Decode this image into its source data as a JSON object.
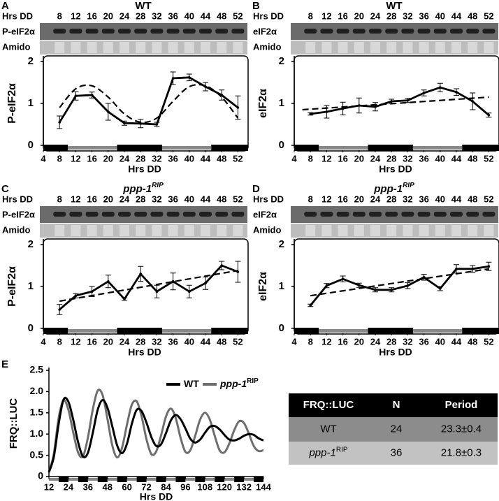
{
  "chart_data": [
    {
      "panel": "A",
      "type": "line",
      "title": "WT",
      "header_label": "Hrs DD",
      "blot_labels": [
        "P-eIF2α",
        "Amido"
      ],
      "x": [
        8,
        12,
        16,
        20,
        24,
        28,
        32,
        36,
        40,
        44,
        48,
        52
      ],
      "series": [
        {
          "color": "#000000",
          "values": [
            0.55,
            1.18,
            1.2,
            0.8,
            0.53,
            0.52,
            0.5,
            1.6,
            1.62,
            1.4,
            1.2,
            0.9
          ],
          "errors": [
            0.15,
            0.1,
            0.07,
            0.2,
            0.05,
            0.1,
            0.05,
            0.15,
            0.08,
            0.1,
            0.12,
            0.28
          ]
        }
      ],
      "fit": {
        "color": "#000000",
        "x": [
          8,
          12,
          16,
          20,
          24,
          28,
          32,
          36,
          40,
          44,
          48,
          52
        ],
        "values": [
          0.9,
          1.35,
          1.42,
          1.15,
          0.75,
          0.55,
          0.65,
          1.05,
          1.4,
          1.42,
          1.15,
          0.65
        ]
      },
      "xlim": [
        4,
        54
      ],
      "xticks": [
        4,
        8,
        12,
        16,
        20,
        24,
        28,
        32,
        36,
        40,
        44,
        48,
        52
      ],
      "ylim": [
        0,
        2
      ],
      "yticks": [
        0,
        1,
        2
      ],
      "x_label": "Hrs DD",
      "y_label": "P-eIF2α"
    },
    {
      "panel": "B",
      "type": "line",
      "title": "WT",
      "header_label": "Hrs DD",
      "blot_labels": [
        "eIF2α",
        "Amido"
      ],
      "x": [
        8,
        12,
        16,
        20,
        24,
        28,
        32,
        36,
        40,
        44,
        48,
        52
      ],
      "series": [
        {
          "color": "#000000",
          "values": [
            0.75,
            0.8,
            0.88,
            0.95,
            0.92,
            1.05,
            1.07,
            1.25,
            1.38,
            1.27,
            1.05,
            0.72
          ],
          "errors": [
            0.03,
            0.15,
            0.15,
            0.18,
            0.1,
            0.05,
            0.05,
            0.07,
            0.1,
            0.08,
            0.2,
            0.05
          ]
        }
      ],
      "fit": {
        "color": "#000000",
        "x": [
          6,
          52
        ],
        "values": [
          0.85,
          1.15
        ]
      },
      "xlim": [
        4,
        54
      ],
      "xticks": [
        4,
        8,
        12,
        16,
        20,
        24,
        28,
        32,
        36,
        40,
        44,
        48,
        52
      ],
      "ylim": [
        0,
        2
      ],
      "yticks": [
        0,
        1,
        2
      ],
      "x_label": "Hrs DD",
      "y_label": "eIF2α"
    },
    {
      "panel": "C",
      "type": "line",
      "title": "ppp-1",
      "title_sup": "RIP",
      "header_label": "Hrs DD",
      "blot_labels": [
        "P-eIF2α",
        "Amido"
      ],
      "x": [
        8,
        12,
        16,
        20,
        24,
        28,
        32,
        36,
        40,
        44,
        48,
        52
      ],
      "series": [
        {
          "color": "#000000",
          "values": [
            0.45,
            0.78,
            0.88,
            1.12,
            0.7,
            1.3,
            0.88,
            1.12,
            0.88,
            1.08,
            1.5,
            1.35
          ],
          "errors": [
            0.12,
            0.05,
            0.12,
            0.15,
            0.03,
            0.18,
            0.15,
            0.2,
            0.15,
            0.15,
            0.1,
            0.25
          ]
        }
      ],
      "fit": {
        "color": "#000000",
        "x": [
          8,
          52
        ],
        "values": [
          0.65,
          1.38
        ]
      },
      "xlim": [
        4,
        54
      ],
      "xticks": [
        4,
        8,
        12,
        16,
        20,
        24,
        28,
        32,
        36,
        40,
        44,
        48,
        52
      ],
      "ylim": [
        0,
        2
      ],
      "yticks": [
        0,
        1,
        2
      ],
      "x_label": "Hrs DD",
      "y_label": "P-eIF2α"
    },
    {
      "panel": "D",
      "type": "line",
      "title": "ppp-1",
      "title_sup": "RIP",
      "header_label": "Hrs DD",
      "blot_labels": [
        "eIF2α",
        "Amido"
      ],
      "x": [
        8,
        12,
        16,
        20,
        24,
        28,
        32,
        36,
        40,
        44,
        48,
        52
      ],
      "series": [
        {
          "color": "#000000",
          "values": [
            0.55,
            1.02,
            1.18,
            1.03,
            0.92,
            0.92,
            1.02,
            1.22,
            0.95,
            1.42,
            1.42,
            1.48
          ],
          "errors": [
            0.03,
            0.05,
            0.07,
            0.05,
            0.05,
            0.05,
            0.07,
            0.07,
            0.05,
            0.1,
            0.08,
            0.1
          ]
        }
      ],
      "fit": {
        "color": "#000000",
        "x": [
          8,
          52
        ],
        "values": [
          0.78,
          1.42
        ]
      },
      "xlim": [
        4,
        54
      ],
      "xticks": [
        4,
        8,
        12,
        16,
        20,
        24,
        28,
        32,
        36,
        40,
        44,
        48,
        52
      ],
      "ylim": [
        0,
        2
      ],
      "yticks": [
        0,
        1,
        2
      ],
      "x_label": "Hrs DD",
      "y_label": "eIF2α"
    },
    {
      "panel": "E",
      "type": "oscillation",
      "x": [
        12,
        15,
        18,
        21,
        24,
        27,
        30,
        33,
        36,
        39,
        42,
        45,
        48,
        51,
        54,
        57,
        60,
        63,
        66,
        69,
        72,
        75,
        78,
        81,
        84,
        87,
        90,
        93,
        96,
        99,
        102,
        105,
        108,
        111,
        114,
        117,
        120,
        123,
        126,
        129,
        132,
        135,
        138,
        141,
        144
      ],
      "series": [
        {
          "name": "WT",
          "color": "#000000",
          "values": [
            0.1,
            0.46,
            1.24,
            1.81,
            1.76,
            1.33,
            0.8,
            0.47,
            0.56,
            1.03,
            1.57,
            1.8,
            1.62,
            1.18,
            0.73,
            0.55,
            0.77,
            1.24,
            1.57,
            1.54,
            1.27,
            0.93,
            0.72,
            0.76,
            1.02,
            1.32,
            1.45,
            1.35,
            1.13,
            0.89,
            0.8,
            0.87,
            1.03,
            1.17,
            1.19,
            1.11,
            0.98,
            0.87,
            0.85,
            0.89,
            0.96,
            1.0,
            0.98,
            0.9,
            0.85
          ]
        },
        {
          "name": "ppp-1",
          "name_sup": "RIP",
          "color": "#6e6e6e",
          "values": [
            0.1,
            0.53,
            1.38,
            1.8,
            1.57,
            1.03,
            0.56,
            0.48,
            0.92,
            1.58,
            2.02,
            1.92,
            1.36,
            0.73,
            0.45,
            0.68,
            1.22,
            1.69,
            1.77,
            1.42,
            0.88,
            0.53,
            0.59,
            0.97,
            1.41,
            1.6,
            1.38,
            0.91,
            0.58,
            0.62,
            0.96,
            1.34,
            1.5,
            1.34,
            0.96,
            0.62,
            0.57,
            0.78,
            1.09,
            1.3,
            1.26,
            1.01,
            0.72,
            0.6,
            0.62
          ]
        }
      ],
      "xlim": [
        12,
        144
      ],
      "xticks": [
        12,
        24,
        36,
        48,
        60,
        72,
        84,
        96,
        108,
        120,
        132,
        144
      ],
      "ylim": [
        0,
        2.5
      ],
      "yticks": [
        0,
        0.5,
        {
          "value": 1,
          "label": "1.0"
        },
        1.5,
        {
          "value": 2,
          "label": "2.0"
        },
        2.5
      ],
      "x_label": "Hrs DD",
      "y_label": "FRQ::LUC"
    }
  ],
  "table": {
    "header": [
      "FRQ::LUC",
      "N",
      "Period"
    ],
    "rows": [
      [
        "WT",
        "24",
        "23.3±0.4"
      ],
      [
        {
          "main": "ppp-1",
          "sup": "RIP"
        },
        "36",
        "21.8±0.3"
      ]
    ]
  }
}
